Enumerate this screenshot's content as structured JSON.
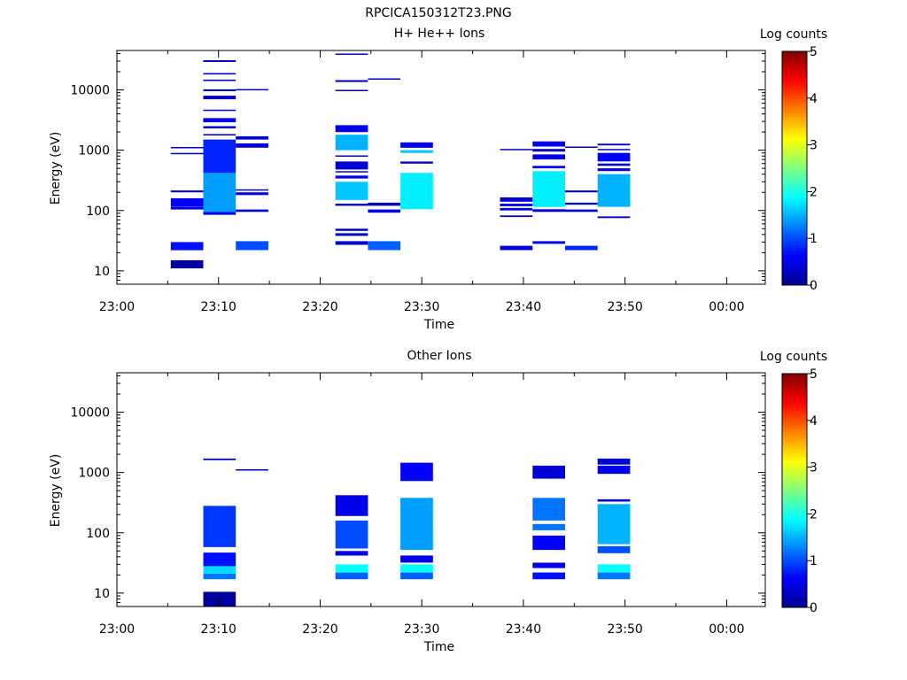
{
  "figure_title": "RPCICA150312T23.PNG",
  "chart_data": [
    {
      "type": "heatmap",
      "title": "H+ He++ Ions",
      "xlabel": "Time",
      "ylabel": "Energy (eV)",
      "y_scale": "log",
      "ylim": [
        6,
        45000
      ],
      "y_ticks": [
        10,
        100,
        1000,
        10000
      ],
      "y_tick_labels": [
        "10",
        "100",
        "1000",
        "10000"
      ],
      "x_ticks": [
        "23:00",
        "23:10",
        "23:20",
        "23:30",
        "23:40",
        "23:50",
        "00:00"
      ],
      "xlim_minutes": [
        0,
        63.8
      ],
      "colorbar": {
        "label": "Log counts",
        "range": [
          0,
          5
        ],
        "ticks": [
          "0",
          "1",
          "2",
          "3",
          "4",
          "5"
        ]
      },
      "bands": [
        {
          "t0": 5.3,
          "t1": 8.5,
          "e": [
            [
              11,
              15,
              0.1
            ],
            [
              22,
              30,
              0.7
            ],
            [
              104,
              114,
              0.5
            ],
            [
              115,
              160,
              0.6
            ],
            [
              200,
              215,
              0.4
            ],
            [
              870,
              900,
              0.3
            ],
            [
              1090,
              1130,
              0.3
            ]
          ]
        },
        {
          "t0": 8.5,
          "t1": 11.7,
          "e": [
            [
              85,
              95,
              0.5
            ],
            [
              95,
              420,
              1.4
            ],
            [
              420,
              1500,
              0.8
            ],
            [
              1750,
              1850,
              0.4
            ],
            [
              2300,
              2500,
              0.4
            ],
            [
              2900,
              3400,
              0.5
            ],
            [
              4500,
              4700,
              0.4
            ],
            [
              7000,
              8000,
              0.3
            ],
            [
              9500,
              10200,
              0.3
            ],
            [
              14000,
              14800,
              0.3
            ],
            [
              18000,
              19000,
              0.3
            ],
            [
              29000,
              31000,
              0.3
            ]
          ]
        },
        {
          "t0": 11.7,
          "t1": 14.9,
          "e": [
            [
              22,
              31,
              1.0
            ],
            [
              95,
              104,
              0.4
            ],
            [
              180,
              200,
              0.4
            ],
            [
              215,
              225,
              0.3
            ],
            [
              1100,
              1300,
              0.4
            ],
            [
              1500,
              1700,
              0.3
            ],
            [
              9800,
              10300,
              0.3
            ]
          ]
        },
        {
          "t0": 21.5,
          "t1": 24.7,
          "e": [
            [
              27,
              31,
              0.3
            ],
            [
              38,
              42,
              0.3
            ],
            [
              46,
              50,
              0.3
            ],
            [
              120,
              130,
              0.3
            ],
            [
              150,
              300,
              1.6
            ],
            [
              340,
              380,
              0.5
            ],
            [
              430,
              450,
              0.4
            ],
            [
              480,
              650,
              0.4
            ],
            [
              780,
              820,
              0.4
            ],
            [
              1000,
              1800,
              1.5
            ],
            [
              2000,
              2600,
              0.5
            ],
            [
              9500,
              10000,
              0.3
            ],
            [
              13500,
              14500,
              0.3
            ],
            [
              38000,
              40000,
              0.3
            ]
          ]
        },
        {
          "t0": 24.7,
          "t1": 27.9,
          "e": [
            [
              22,
              31,
              1.1
            ],
            [
              92,
              104,
              0.5
            ],
            [
              120,
              135,
              0.3
            ],
            [
              14800,
              15500,
              0.3
            ]
          ]
        },
        {
          "t0": 27.9,
          "t1": 31.1,
          "e": [
            [
              105,
              420,
              1.8
            ],
            [
              600,
              650,
              0.4
            ],
            [
              900,
              1000,
              1.6
            ],
            [
              1100,
              1350,
              0.6
            ]
          ]
        },
        {
          "t0": 37.7,
          "t1": 40.9,
          "e": [
            [
              22,
              26,
              0.4
            ],
            [
              78,
              83,
              0.4
            ],
            [
              100,
              110,
              0.5
            ],
            [
              118,
              130,
              0.6
            ],
            [
              140,
              165,
              0.4
            ],
            [
              1000,
              1050,
              0.3
            ]
          ]
        },
        {
          "t0": 40.9,
          "t1": 44.1,
          "e": [
            [
              28,
              31,
              0.5
            ],
            [
              95,
              105,
              0.4
            ],
            [
              115,
              450,
              1.8
            ],
            [
              500,
              550,
              0.6
            ],
            [
              700,
              850,
              0.5
            ],
            [
              950,
              1050,
              0.3
            ],
            [
              1150,
              1400,
              0.5
            ]
          ]
        },
        {
          "t0": 44.1,
          "t1": 47.3,
          "e": [
            [
              22,
              26,
              0.8
            ],
            [
              95,
              104,
              0.4
            ],
            [
              125,
              135,
              0.4
            ],
            [
              200,
              215,
              0.4
            ],
            [
              1100,
              1150,
              0.3
            ]
          ]
        },
        {
          "t0": 47.3,
          "t1": 50.5,
          "e": [
            [
              75,
              80,
              0.3
            ],
            [
              115,
              400,
              1.5
            ],
            [
              450,
              500,
              0.4
            ],
            [
              550,
              600,
              0.4
            ],
            [
              650,
              900,
              0.6
            ],
            [
              1000,
              1050,
              0.4
            ],
            [
              1200,
              1280,
              0.3
            ]
          ]
        }
      ]
    },
    {
      "type": "heatmap",
      "title": "Other Ions",
      "xlabel": "Time",
      "ylabel": "Energy (eV)",
      "y_scale": "log",
      "ylim": [
        6,
        45000
      ],
      "y_ticks": [
        10,
        100,
        1000,
        10000
      ],
      "y_tick_labels": [
        "10",
        "100",
        "1000",
        "10000"
      ],
      "x_ticks": [
        "23:00",
        "23:10",
        "23:20",
        "23:30",
        "23:40",
        "23:50",
        "00:00"
      ],
      "xlim_minutes": [
        0,
        63.8
      ],
      "colorbar": {
        "label": "Log counts",
        "range": [
          0,
          5
        ],
        "ticks": [
          "0",
          "1",
          "2",
          "3",
          "4",
          "5"
        ]
      },
      "bands": [
        {
          "t0": 8.5,
          "t1": 11.7,
          "e": [
            [
              6,
              10.5,
              0.1
            ],
            [
              17,
              21,
              1.2
            ],
            [
              21,
              28,
              1.7
            ],
            [
              28,
              47,
              0.7
            ],
            [
              58,
              280,
              0.9
            ],
            [
              1600,
              1700,
              0.3
            ]
          ]
        },
        {
          "t0": 11.7,
          "t1": 14.9,
          "e": [
            [
              1080,
              1130,
              0.3
            ]
          ]
        },
        {
          "t0": 21.5,
          "t1": 24.7,
          "e": [
            [
              17,
              22,
              1.1
            ],
            [
              22,
              30,
              1.9
            ],
            [
              42,
              50,
              0.5
            ],
            [
              55,
              160,
              1.0
            ],
            [
              190,
              420,
              0.5
            ]
          ]
        },
        {
          "t0": 27.9,
          "t1": 31.1,
          "e": [
            [
              17,
              22,
              1.1
            ],
            [
              22,
              30,
              1.9
            ],
            [
              32,
              42,
              0.5
            ],
            [
              52,
              380,
              1.4
            ],
            [
              720,
              1450,
              0.6
            ]
          ]
        },
        {
          "t0": 40.9,
          "t1": 44.1,
          "e": [
            [
              17,
              22,
              0.7
            ],
            [
              26,
              32,
              0.5
            ],
            [
              52,
              90,
              0.6
            ],
            [
              110,
              140,
              1.2
            ],
            [
              160,
              380,
              1.2
            ],
            [
              790,
              1300,
              0.4
            ]
          ]
        },
        {
          "t0": 47.3,
          "t1": 50.5,
          "e": [
            [
              17,
              22,
              1.2
            ],
            [
              22,
              30,
              1.9
            ],
            [
              46,
              60,
              1.0
            ],
            [
              65,
              300,
              1.5
            ],
            [
              330,
              360,
              0.4
            ],
            [
              950,
              1300,
              0.5
            ],
            [
              1350,
              1700,
              0.4
            ]
          ]
        }
      ]
    }
  ]
}
